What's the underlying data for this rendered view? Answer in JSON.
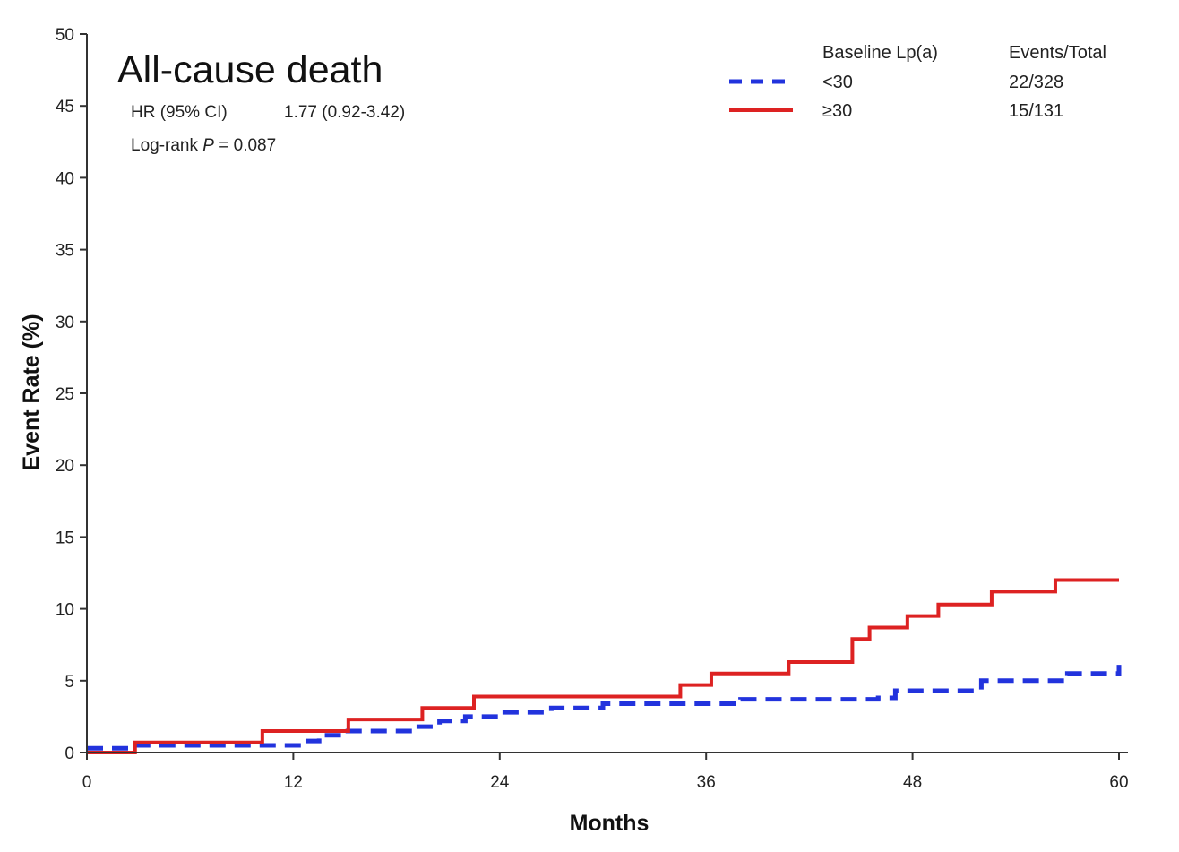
{
  "chart_data": {
    "type": "line",
    "title": "All-cause death",
    "xlabel": "Months",
    "ylabel": "Event Rate (%)",
    "xlim": [
      0,
      60
    ],
    "ylim": [
      0,
      50
    ],
    "x_ticks": [
      0,
      12,
      24,
      36,
      48,
      60
    ],
    "y_ticks": [
      0,
      5,
      10,
      15,
      20,
      25,
      30,
      35,
      40,
      45,
      50
    ],
    "grid": false,
    "legend_position": "top-right",
    "legend": {
      "header_group": "Baseline Lp(a)",
      "header_events": "Events/Total"
    },
    "annotations": {
      "hr_label": "HR (95% CI)",
      "hr_value": "1.77 (0.92-3.42)",
      "logrank_prefix": "Log-rank ",
      "logrank_p": "P",
      "logrank_value": " = 0.087"
    },
    "series": [
      {
        "name": "<30",
        "events_total": "22/328",
        "color": "#2233dd",
        "style": "dashed",
        "x": [
          0,
          2.8,
          10.5,
          12.5,
          13.5,
          15,
          19,
          20.5,
          22,
          24,
          27,
          30,
          35,
          37,
          38,
          40,
          42,
          44,
          46,
          47,
          50,
          52,
          56,
          57,
          60
        ],
        "y": [
          0.3,
          0.5,
          0.5,
          0.8,
          1.2,
          1.5,
          1.8,
          2.2,
          2.5,
          2.8,
          3.1,
          3.4,
          3.4,
          3.4,
          3.7,
          3.7,
          3.7,
          3.7,
          3.8,
          4.3,
          4.3,
          5.0,
          5.0,
          5.5,
          6.1
        ]
      },
      {
        "name": "≥30",
        "events_total": "15/131",
        "color": "#dd2222",
        "style": "solid",
        "x": [
          0,
          2.8,
          10.2,
          15.2,
          19.5,
          22.5,
          34.5,
          36.3,
          40.8,
          44.5,
          45.5,
          47.7,
          49.5,
          52.6,
          56.3,
          60
        ],
        "y": [
          0,
          0.7,
          1.5,
          2.3,
          3.1,
          3.9,
          4.7,
          5.5,
          6.3,
          7.9,
          8.7,
          9.5,
          10.3,
          11.2,
          12.0,
          12.0
        ]
      }
    ]
  }
}
